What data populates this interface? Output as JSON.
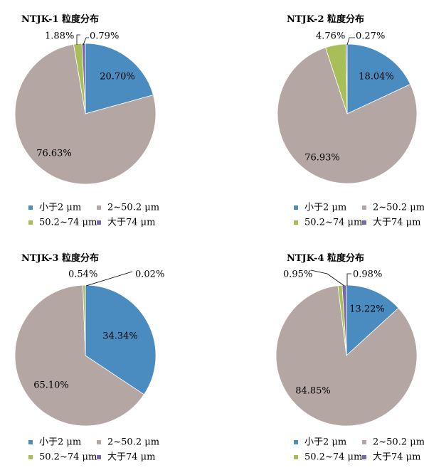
{
  "legend_labels": [
    "小于2 μm",
    "2~50.2 μm",
    "50.2~74 μm",
    "大于74 μm"
  ],
  "colors": [
    "#4a8cc0",
    "#b3a6a3",
    "#a8be58",
    "#7b68a6"
  ],
  "chart_data": [
    {
      "type": "pie",
      "title": "NTJK-1 粒度分布",
      "categories": [
        "小于2 μm",
        "2~50.2 μm",
        "50.2~74 μm",
        "大于74 μm"
      ],
      "values": [
        20.7,
        76.63,
        1.88,
        0.79
      ],
      "labels": [
        "20.70%",
        "76.63%",
        "1.88%",
        "0.79%"
      ],
      "legend": "bottom"
    },
    {
      "type": "pie",
      "title": "NTJK-2 粒度分布",
      "categories": [
        "小于2 μm",
        "2~50.2 μm",
        "50.2~74 μm",
        "大于74 μm"
      ],
      "values": [
        18.04,
        76.93,
        4.76,
        0.27
      ],
      "labels": [
        "18.04%",
        "76.93%",
        "4.76%",
        "0.27%"
      ],
      "legend": "bottom"
    },
    {
      "type": "pie",
      "title": "NTJK-3 粒度分布",
      "categories": [
        "小于2 μm",
        "2~50.2 μm",
        "50.2~74 μm",
        "大于74 μm"
      ],
      "values": [
        34.34,
        65.1,
        0.54,
        0.02
      ],
      "labels": [
        "34.34%",
        "65.10%",
        "0.54%",
        "0.02%"
      ],
      "legend": "bottom"
    },
    {
      "type": "pie",
      "title": "NTJK-4 粒度分布",
      "categories": [
        "小于2 μm",
        "2~50.2 μm",
        "50.2~74 μm",
        "大于74 μm"
      ],
      "values": [
        13.22,
        84.85,
        0.95,
        0.98
      ],
      "labels": [
        "13.22%",
        "84.85%",
        "0.95%",
        "0.98%"
      ],
      "legend": "bottom"
    }
  ]
}
